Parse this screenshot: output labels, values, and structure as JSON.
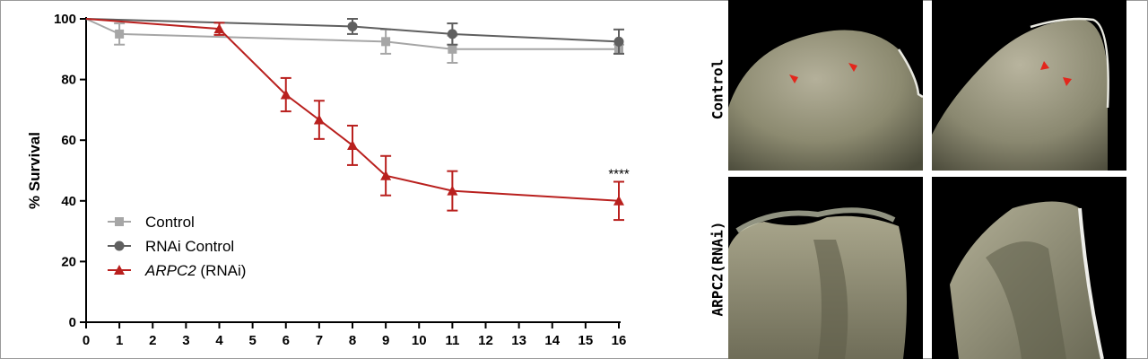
{
  "chart_data": {
    "type": "line",
    "xlabel": "",
    "ylabel": "% Survival",
    "xlim": [
      0,
      16
    ],
    "ylim": [
      0,
      100
    ],
    "x_ticks": [
      0,
      1,
      2,
      3,
      4,
      5,
      6,
      7,
      8,
      9,
      10,
      11,
      12,
      13,
      14,
      15,
      16
    ],
    "y_ticks": [
      0,
      20,
      40,
      60,
      80,
      100
    ],
    "legend_position": "lower-left",
    "grid": false,
    "series": [
      {
        "name": "Control",
        "legend_italic": "",
        "legend_suffix": "Control",
        "color": "#a6a6a6",
        "marker": "square",
        "points": [
          {
            "x": 0,
            "y": 100,
            "err": 0
          },
          {
            "x": 1,
            "y": 95,
            "err": 3.5
          },
          {
            "x": 9,
            "y": 92.5,
            "err": 4
          },
          {
            "x": 11,
            "y": 90,
            "err": 4.5
          },
          {
            "x": 16,
            "y": 90,
            "err": 1.5
          }
        ]
      },
      {
        "name": "RNAi Control",
        "legend_italic": "",
        "legend_suffix": "RNAi Control",
        "color": "#5f5f5f",
        "marker": "circle",
        "points": [
          {
            "x": 0,
            "y": 100,
            "err": 0
          },
          {
            "x": 8,
            "y": 97.5,
            "err": 2.5
          },
          {
            "x": 11,
            "y": 95,
            "err": 3.5
          },
          {
            "x": 16,
            "y": 92.5,
            "err": 4
          }
        ]
      },
      {
        "name": "ARPC2 (RNAi)",
        "legend_italic": "ARPC2",
        "legend_suffix": " (RNAi)",
        "color": "#b9201e",
        "marker": "triangle",
        "points": [
          {
            "x": 0,
            "y": 100,
            "err": 0
          },
          {
            "x": 4,
            "y": 96.7,
            "err": 2
          },
          {
            "x": 6,
            "y": 75,
            "err": 5.5
          },
          {
            "x": 7,
            "y": 66.7,
            "err": 6.3
          },
          {
            "x": 8,
            "y": 58.3,
            "err": 6.5
          },
          {
            "x": 9,
            "y": 48.3,
            "err": 6.5
          },
          {
            "x": 11,
            "y": 43.3,
            "err": 6.5
          },
          {
            "x": 16,
            "y": 40,
            "err": 6.3
          }
        ]
      }
    ],
    "annotations": [
      {
        "text": "****",
        "x": 16,
        "y": 49
      }
    ]
  },
  "panels": {
    "row_labels": [
      "Control",
      "ARPC2(RNAi)"
    ],
    "images": [
      {
        "name": "control-image-1",
        "condition": "Control"
      },
      {
        "name": "control-image-2",
        "condition": "Control"
      },
      {
        "name": "arpc2-rnai-image-1",
        "condition": "ARPC2(RNAi)"
      },
      {
        "name": "arpc2-rnai-image-2",
        "condition": "ARPC2(RNAi)"
      }
    ],
    "arrowhead_color": "#e3261c"
  }
}
